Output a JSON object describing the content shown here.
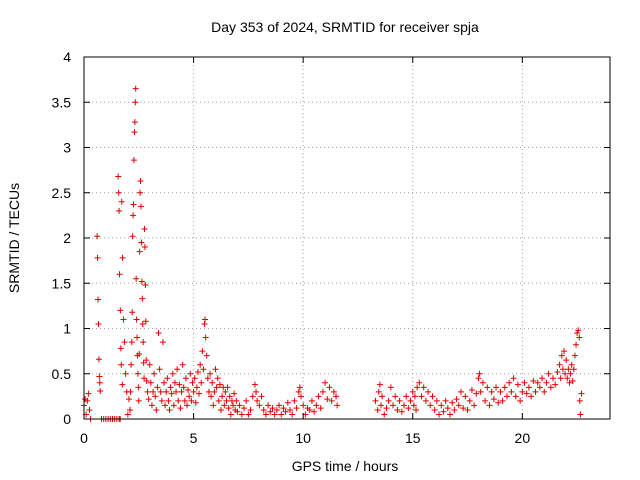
{
  "chart_data": {
    "type": "scatter",
    "title": "Day 353 of 2024, SRMTID for receiver spja",
    "xlabel": "GPS time / hours",
    "ylabel": "SRMTID / TECUs",
    "xlim": [
      0,
      24
    ],
    "ylim": [
      0,
      4
    ],
    "xticks": [
      0,
      5,
      10,
      15,
      20
    ],
    "xtick_labels": [
      "0",
      "5",
      "10",
      "15",
      "20"
    ],
    "yticks": [
      0,
      0.5,
      1,
      1.5,
      2,
      2.5,
      3,
      3.5,
      4
    ],
    "ytick_labels": [
      "0",
      "0.5",
      "1",
      "1.5",
      "2",
      "2.5",
      "3",
      "3.5",
      "4"
    ],
    "grid": true,
    "marker": "+",
    "color": "#e00000",
    "series": [
      {
        "name": "SRMTID",
        "points": [
          [
            0.0,
            0.15
          ],
          [
            0.05,
            0.22
          ],
          [
            0.1,
            0.05
          ],
          [
            0.15,
            0.2
          ],
          [
            0.2,
            0.28
          ],
          [
            0.25,
            0.1
          ],
          [
            0.3,
            0.0
          ],
          [
            0.6,
            2.02
          ],
          [
            0.62,
            1.78
          ],
          [
            0.64,
            1.32
          ],
          [
            0.66,
            1.05
          ],
          [
            0.68,
            0.66
          ],
          [
            0.7,
            0.47
          ],
          [
            0.72,
            0.4
          ],
          [
            0.74,
            0.31
          ],
          [
            0.8,
            0.0
          ],
          [
            0.9,
            0.0
          ],
          [
            1.0,
            0.0
          ],
          [
            1.1,
            0.0
          ],
          [
            1.2,
            0.0
          ],
          [
            1.3,
            0.0
          ],
          [
            1.4,
            0.0
          ],
          [
            1.5,
            0.0
          ],
          [
            1.6,
            0.0
          ],
          [
            1.65,
            0.0
          ],
          [
            1.75,
            0.38
          ],
          [
            1.7,
            0.6
          ],
          [
            1.68,
            0.78
          ],
          [
            1.66,
            1.2
          ],
          [
            1.62,
            1.6
          ],
          [
            1.6,
            2.3
          ],
          [
            1.58,
            2.5
          ],
          [
            1.56,
            2.68
          ],
          [
            1.72,
            2.4
          ],
          [
            1.76,
            1.78
          ],
          [
            1.8,
            1.1
          ],
          [
            1.85,
            0.85
          ],
          [
            1.9,
            0.5
          ],
          [
            1.95,
            0.3
          ],
          [
            2.0,
            0.05
          ],
          [
            2.05,
            0.22
          ],
          [
            2.1,
            0.1
          ],
          [
            2.12,
            0.3
          ],
          [
            2.15,
            0.6
          ],
          [
            2.18,
            0.85
          ],
          [
            2.2,
            1.18
          ],
          [
            2.22,
            2.02
          ],
          [
            2.24,
            2.25
          ],
          [
            2.26,
            2.37
          ],
          [
            2.28,
            2.86
          ],
          [
            2.3,
            3.17
          ],
          [
            2.32,
            3.28
          ],
          [
            2.34,
            3.5
          ],
          [
            2.36,
            3.65
          ],
          [
            2.38,
            1.55
          ],
          [
            2.4,
            1.1
          ],
          [
            2.42,
            0.9
          ],
          [
            2.44,
            0.7
          ],
          [
            2.46,
            0.5
          ],
          [
            2.48,
            0.35
          ],
          [
            2.5,
            0.2
          ],
          [
            2.52,
            0.72
          ],
          [
            2.54,
            1.85
          ],
          [
            2.56,
            2.5
          ],
          [
            2.58,
            2.63
          ],
          [
            2.6,
            2.35
          ],
          [
            2.62,
            1.95
          ],
          [
            2.64,
            1.52
          ],
          [
            2.66,
            1.33
          ],
          [
            2.68,
            1.05
          ],
          [
            2.7,
            0.85
          ],
          [
            2.72,
            0.62
          ],
          [
            2.74,
            0.45
          ],
          [
            2.76,
            2.1
          ],
          [
            2.78,
            1.9
          ],
          [
            2.8,
            1.48
          ],
          [
            2.82,
            1.08
          ],
          [
            2.84,
            0.65
          ],
          [
            2.86,
            0.42
          ],
          [
            2.9,
            0.3
          ],
          [
            2.95,
            0.22
          ],
          [
            3.0,
            0.6
          ],
          [
            3.05,
            0.4
          ],
          [
            3.1,
            0.15
          ],
          [
            3.15,
            0.3
          ],
          [
            3.2,
            0.5
          ],
          [
            3.25,
            0.25
          ],
          [
            3.3,
            0.1
          ],
          [
            3.35,
            0.35
          ],
          [
            3.4,
            0.95
          ],
          [
            3.45,
            0.55
          ],
          [
            3.5,
            0.3
          ],
          [
            3.55,
            0.2
          ],
          [
            3.6,
            0.85
          ],
          [
            3.65,
            0.4
          ],
          [
            3.7,
            0.15
          ],
          [
            3.75,
            0.3
          ],
          [
            3.8,
            0.45
          ],
          [
            3.85,
            0.2
          ],
          [
            3.9,
            0.1
          ],
          [
            3.95,
            0.35
          ],
          [
            4.0,
            0.28
          ],
          [
            4.05,
            0.5
          ],
          [
            4.1,
            0.15
          ],
          [
            4.15,
            0.4
          ],
          [
            4.2,
            0.3
          ],
          [
            4.25,
            0.55
          ],
          [
            4.3,
            0.2
          ],
          [
            4.35,
            0.38
          ],
          [
            4.4,
            0.12
          ],
          [
            4.45,
            0.3
          ],
          [
            4.5,
            0.6
          ],
          [
            4.55,
            0.35
          ],
          [
            4.6,
            0.2
          ],
          [
            4.65,
            0.45
          ],
          [
            4.7,
            0.15
          ],
          [
            4.75,
            0.32
          ],
          [
            4.8,
            0.25
          ],
          [
            4.85,
            0.5
          ],
          [
            4.9,
            0.2
          ],
          [
            4.95,
            0.4
          ],
          [
            5.0,
            0.3
          ],
          [
            5.05,
            0.45
          ],
          [
            5.1,
            0.18
          ],
          [
            5.15,
            0.35
          ],
          [
            5.2,
            0.52
          ],
          [
            5.25,
            0.28
          ],
          [
            5.3,
            0.6
          ],
          [
            5.35,
            0.4
          ],
          [
            5.4,
            0.75
          ],
          [
            5.45,
            0.55
          ],
          [
            5.5,
            1.05
          ],
          [
            5.52,
            1.1
          ],
          [
            5.55,
            0.9
          ],
          [
            5.6,
            0.7
          ],
          [
            5.65,
            0.45
          ],
          [
            5.7,
            0.3
          ],
          [
            5.75,
            0.5
          ],
          [
            5.8,
            0.25
          ],
          [
            5.85,
            0.4
          ],
          [
            5.9,
            0.15
          ],
          [
            5.95,
            0.3
          ],
          [
            6.0,
            0.55
          ],
          [
            6.05,
            0.35
          ],
          [
            6.1,
            0.45
          ],
          [
            6.15,
            0.2
          ],
          [
            6.2,
            0.38
          ],
          [
            6.25,
            0.1
          ],
          [
            6.3,
            0.25
          ],
          [
            6.35,
            0.35
          ],
          [
            6.4,
            0.15
          ],
          [
            6.45,
            0.3
          ],
          [
            6.5,
            0.2
          ],
          [
            6.55,
            0.35
          ],
          [
            6.6,
            0.12
          ],
          [
            6.65,
            0.25
          ],
          [
            6.7,
            0.05
          ],
          [
            6.75,
            0.2
          ],
          [
            6.8,
            0.15
          ],
          [
            6.85,
            0.28
          ],
          [
            6.9,
            0.1
          ],
          [
            6.95,
            0.2
          ],
          [
            7.0,
            0.08
          ],
          [
            7.1,
            0.15
          ],
          [
            7.2,
            0.05
          ],
          [
            7.3,
            0.12
          ],
          [
            7.4,
            0.2
          ],
          [
            7.5,
            0.05
          ],
          [
            7.6,
            0.1
          ],
          [
            7.7,
            0.25
          ],
          [
            7.8,
            0.38
          ],
          [
            7.85,
            0.3
          ],
          [
            7.9,
            0.2
          ],
          [
            8.0,
            0.15
          ],
          [
            8.1,
            0.25
          ],
          [
            8.2,
            0.1
          ],
          [
            8.3,
            0.05
          ],
          [
            8.4,
            0.15
          ],
          [
            8.5,
            0.08
          ],
          [
            8.6,
            0.12
          ],
          [
            8.7,
            0.05
          ],
          [
            8.8,
            0.1
          ],
          [
            8.9,
            0.15
          ],
          [
            9.0,
            0.05
          ],
          [
            9.1,
            0.12
          ],
          [
            9.2,
            0.08
          ],
          [
            9.3,
            0.18
          ],
          [
            9.4,
            0.1
          ],
          [
            9.5,
            0.05
          ],
          [
            9.6,
            0.2
          ],
          [
            9.7,
            0.12
          ],
          [
            9.8,
            0.3
          ],
          [
            9.85,
            0.35
          ],
          [
            9.9,
            0.25
          ],
          [
            10.0,
            0.15
          ],
          [
            10.1,
            0.05
          ],
          [
            10.2,
            0.12
          ],
          [
            10.3,
            0.1
          ],
          [
            10.4,
            0.2
          ],
          [
            10.5,
            0.08
          ],
          [
            10.6,
            0.15
          ],
          [
            10.7,
            0.25
          ],
          [
            10.8,
            0.12
          ],
          [
            10.9,
            0.3
          ],
          [
            11.0,
            0.4
          ],
          [
            11.1,
            0.22
          ],
          [
            11.2,
            0.35
          ],
          [
            11.3,
            0.2
          ],
          [
            11.4,
            0.3
          ],
          [
            11.5,
            0.25
          ],
          [
            11.55,
            0.15
          ],
          [
            13.3,
            0.2
          ],
          [
            13.4,
            0.1
          ],
          [
            13.45,
            0.3
          ],
          [
            13.5,
            0.38
          ],
          [
            13.55,
            0.15
          ],
          [
            13.6,
            0.25
          ],
          [
            13.7,
            0.05
          ],
          [
            13.8,
            0.12
          ],
          [
            13.9,
            0.2
          ],
          [
            14.0,
            0.35
          ],
          [
            14.1,
            0.15
          ],
          [
            14.2,
            0.25
          ],
          [
            14.3,
            0.1
          ],
          [
            14.4,
            0.2
          ],
          [
            14.5,
            0.08
          ],
          [
            14.6,
            0.15
          ],
          [
            14.7,
            0.25
          ],
          [
            14.8,
            0.12
          ],
          [
            14.9,
            0.2
          ],
          [
            15.0,
            0.3
          ],
          [
            15.05,
            0.15
          ],
          [
            15.1,
            0.25
          ],
          [
            15.15,
            0.1
          ],
          [
            15.2,
            0.35
          ],
          [
            15.3,
            0.4
          ],
          [
            15.4,
            0.25
          ],
          [
            15.5,
            0.35
          ],
          [
            15.6,
            0.2
          ],
          [
            15.7,
            0.3
          ],
          [
            15.8,
            0.15
          ],
          [
            15.9,
            0.25
          ],
          [
            16.0,
            0.1
          ],
          [
            16.1,
            0.2
          ],
          [
            16.2,
            0.05
          ],
          [
            16.3,
            0.15
          ],
          [
            16.4,
            0.08
          ],
          [
            16.5,
            0.2
          ],
          [
            16.6,
            0.12
          ],
          [
            16.7,
            0.05
          ],
          [
            16.8,
            0.18
          ],
          [
            16.9,
            0.1
          ],
          [
            17.0,
            0.22
          ],
          [
            17.1,
            0.15
          ],
          [
            17.2,
            0.3
          ],
          [
            17.3,
            0.12
          ],
          [
            17.4,
            0.25
          ],
          [
            17.5,
            0.1
          ],
          [
            17.6,
            0.2
          ],
          [
            17.7,
            0.32
          ],
          [
            17.8,
            0.15
          ],
          [
            17.9,
            0.28
          ],
          [
            18.0,
            0.45
          ],
          [
            18.05,
            0.5
          ],
          [
            18.1,
            0.3
          ],
          [
            18.2,
            0.4
          ],
          [
            18.3,
            0.2
          ],
          [
            18.4,
            0.35
          ],
          [
            18.5,
            0.15
          ],
          [
            18.6,
            0.3
          ],
          [
            18.7,
            0.22
          ],
          [
            18.8,
            0.35
          ],
          [
            18.9,
            0.18
          ],
          [
            19.0,
            0.3
          ],
          [
            19.1,
            0.2
          ],
          [
            19.2,
            0.35
          ],
          [
            19.3,
            0.25
          ],
          [
            19.4,
            0.4
          ],
          [
            19.5,
            0.3
          ],
          [
            19.6,
            0.45
          ],
          [
            19.7,
            0.25
          ],
          [
            19.8,
            0.38
          ],
          [
            19.9,
            0.2
          ],
          [
            20.0,
            0.3
          ],
          [
            20.1,
            0.4
          ],
          [
            20.2,
            0.28
          ],
          [
            20.3,
            0.35
          ],
          [
            20.4,
            0.25
          ],
          [
            20.5,
            0.42
          ],
          [
            20.6,
            0.3
          ],
          [
            20.7,
            0.4
          ],
          [
            20.8,
            0.35
          ],
          [
            20.9,
            0.45
          ],
          [
            21.0,
            0.3
          ],
          [
            21.1,
            0.4
          ],
          [
            21.2,
            0.5
          ],
          [
            21.3,
            0.35
          ],
          [
            21.4,
            0.45
          ],
          [
            21.5,
            0.38
          ],
          [
            21.6,
            0.52
          ],
          [
            21.7,
            0.6
          ],
          [
            21.75,
            0.45
          ],
          [
            21.8,
            0.7
          ],
          [
            21.85,
            0.55
          ],
          [
            21.9,
            0.75
          ],
          [
            21.95,
            0.5
          ],
          [
            22.0,
            0.65
          ],
          [
            22.05,
            0.45
          ],
          [
            22.1,
            0.55
          ],
          [
            22.15,
            0.4
          ],
          [
            22.2,
            0.5
          ],
          [
            22.25,
            0.6
          ],
          [
            22.3,
            0.42
          ],
          [
            22.35,
            0.55
          ],
          [
            22.4,
            0.7
          ],
          [
            22.45,
            0.82
          ],
          [
            22.5,
            0.95
          ],
          [
            22.55,
            0.98
          ],
          [
            22.6,
            0.9
          ],
          [
            22.62,
            0.2
          ],
          [
            22.65,
            0.05
          ],
          [
            22.7,
            0.28
          ]
        ]
      }
    ]
  }
}
